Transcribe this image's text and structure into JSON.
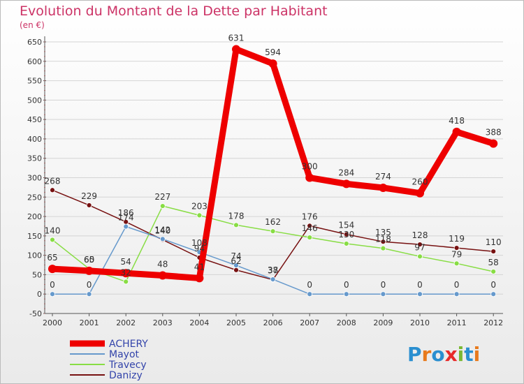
{
  "chart_data": {
    "type": "line",
    "title": "Evolution du Montant de la Dette par Habitant",
    "subtitle": "(en €)",
    "x": [
      "2000",
      "2001",
      "2002",
      "2003",
      "2004",
      "2005",
      "2006",
      "2007",
      "2008",
      "2009",
      "2010",
      "2011",
      "2012"
    ],
    "ylim": [
      -50,
      650
    ],
    "yticks": [
      -50,
      0,
      50,
      100,
      150,
      200,
      250,
      300,
      350,
      400,
      450,
      500,
      550,
      600,
      650
    ],
    "grid": "horizontal",
    "legend_position": "bottom-left",
    "series": [
      {
        "name": "ACHERY",
        "color": "#ee0000",
        "values": [
          65,
          60,
          54,
          48,
          41,
          631,
          594,
          300,
          284,
          274,
          260,
          418,
          388
        ]
      },
      {
        "name": "Mayot",
        "color": "#6699cc",
        "values": [
          0,
          0,
          174,
          142,
          108,
          74,
          38,
          0,
          0,
          0,
          0,
          0,
          0
        ]
      },
      {
        "name": "Travecy",
        "color": "#88dd44",
        "values": [
          140,
          65,
          32,
          227,
          203,
          178,
          162,
          146,
          130,
          118,
          97,
          79,
          58
        ]
      },
      {
        "name": "Danizy",
        "color": "#771111",
        "values": [
          268,
          229,
          186,
          140,
          94,
          62,
          37,
          176,
          154,
          135,
          128,
          119,
          110
        ]
      }
    ]
  },
  "brand": {
    "letters": [
      "P",
      "r",
      "o",
      "x",
      "i",
      "t",
      "i"
    ]
  }
}
